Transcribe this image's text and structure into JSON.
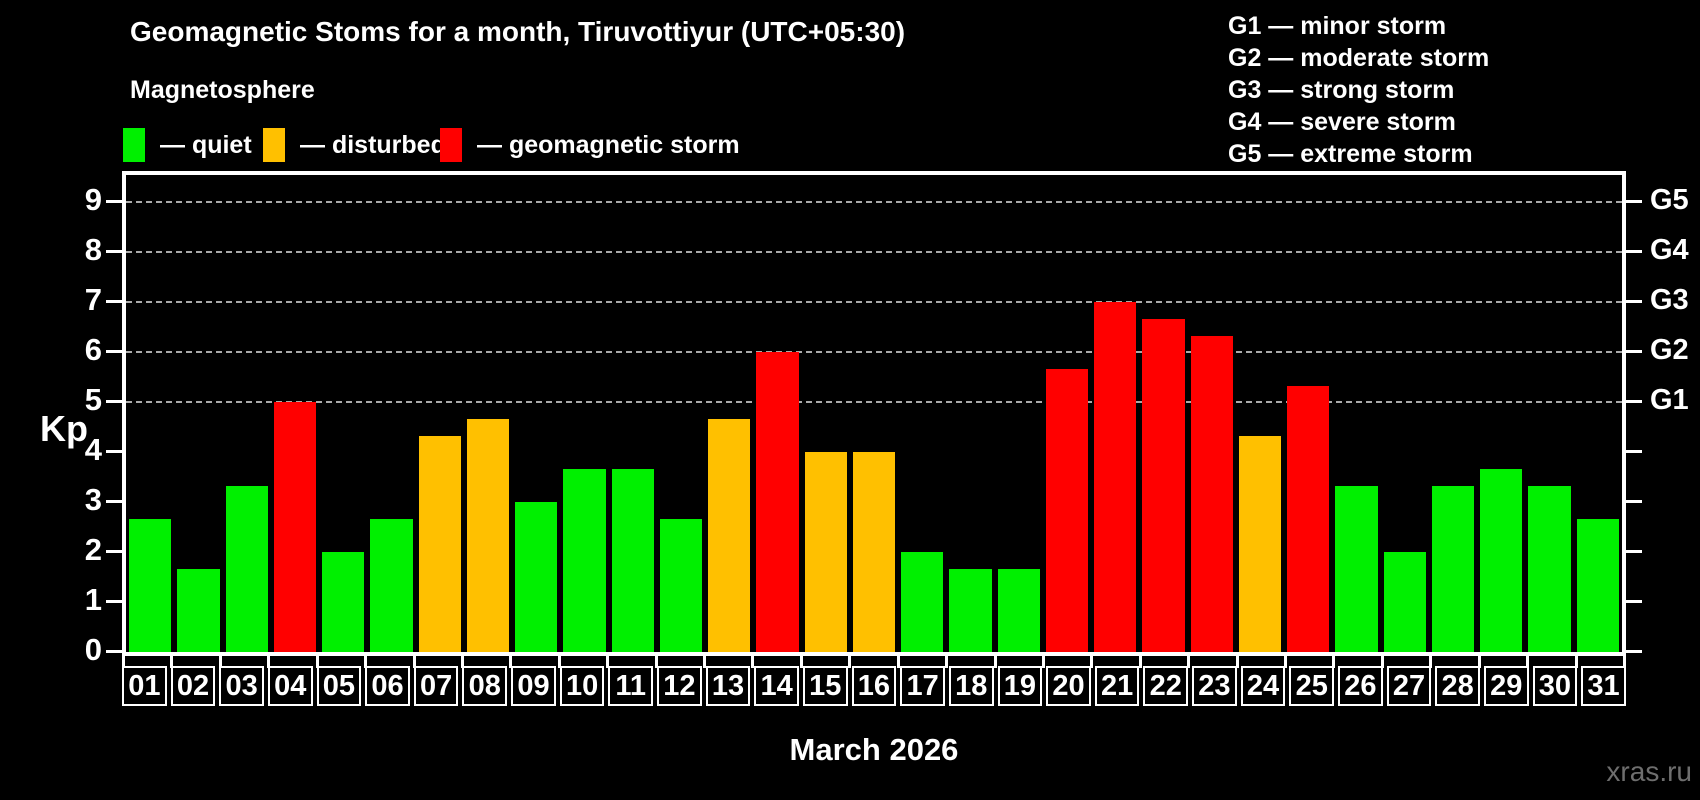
{
  "title": "Geomagnetic Stoms for a month, Tiruvottiyur (UTC+05:30)",
  "subtitle": "Magnetosphere",
  "legend": {
    "items": [
      {
        "label": "— quiet",
        "status": "quiet",
        "color": "#00f000"
      },
      {
        "label": "— disturbed",
        "status": "disturbed",
        "color": "#ffc000"
      },
      {
        "label": "— geomagnetic storm",
        "status": "storm",
        "color": "#ff0000"
      }
    ]
  },
  "g_legend": {
    "lines": [
      "G1 — minor storm",
      "G2 — moderate storm",
      "G3 — strong storm",
      "G4 — severe storm",
      "G5 — extreme storm"
    ]
  },
  "y_axis": {
    "label": "Kp",
    "ticks": [
      0,
      1,
      2,
      3,
      4,
      5,
      6,
      7,
      8,
      9
    ]
  },
  "right_axis": {
    "labels": [
      {
        "text": "G1",
        "kp": 5
      },
      {
        "text": "G2",
        "kp": 6
      },
      {
        "text": "G3",
        "kp": 7
      },
      {
        "text": "G4",
        "kp": 8
      },
      {
        "text": "G5",
        "kp": 9
      }
    ]
  },
  "x_label": "March 2026",
  "watermark": "xras.ru",
  "colors": {
    "quiet": "#00f000",
    "disturbed": "#ffc000",
    "storm": "#ff0000",
    "grid": "#aaaaaa",
    "axis": "#ffffff",
    "background": "#000000"
  },
  "chart_data": {
    "type": "bar",
    "title": "Geomagnetic Stoms for a month, Tiruvottiyur (UTC+05:30)",
    "xlabel": "March 2026",
    "ylabel": "Kp",
    "ylim": [
      0,
      9.6
    ],
    "grid": "horizontal dashed lines at Kp 5,6,7,8,9 (G1–G5)",
    "legend_position": "top-left",
    "categories": [
      "01",
      "02",
      "03",
      "04",
      "05",
      "06",
      "07",
      "08",
      "09",
      "10",
      "11",
      "12",
      "13",
      "14",
      "15",
      "16",
      "17",
      "18",
      "19",
      "20",
      "21",
      "22",
      "23",
      "24",
      "25",
      "26",
      "27",
      "28",
      "29",
      "30",
      "31"
    ],
    "values": [
      2.67,
      1.67,
      3.33,
      5,
      2,
      2.67,
      4.33,
      4.67,
      3,
      3.67,
      3.67,
      2.67,
      4.67,
      6,
      4,
      4,
      2,
      1.67,
      1.67,
      5.67,
      7,
      6.67,
      6.33,
      4.33,
      5.33,
      3.33,
      2,
      3.33,
      3.67,
      3.33,
      2.67
    ],
    "statuses": [
      "quiet",
      "quiet",
      "quiet",
      "storm",
      "quiet",
      "quiet",
      "disturbed",
      "disturbed",
      "quiet",
      "quiet",
      "quiet",
      "quiet",
      "disturbed",
      "storm",
      "disturbed",
      "disturbed",
      "quiet",
      "quiet",
      "quiet",
      "storm",
      "storm",
      "storm",
      "storm",
      "disturbed",
      "storm",
      "quiet",
      "quiet",
      "quiet",
      "quiet",
      "quiet",
      "quiet"
    ]
  }
}
